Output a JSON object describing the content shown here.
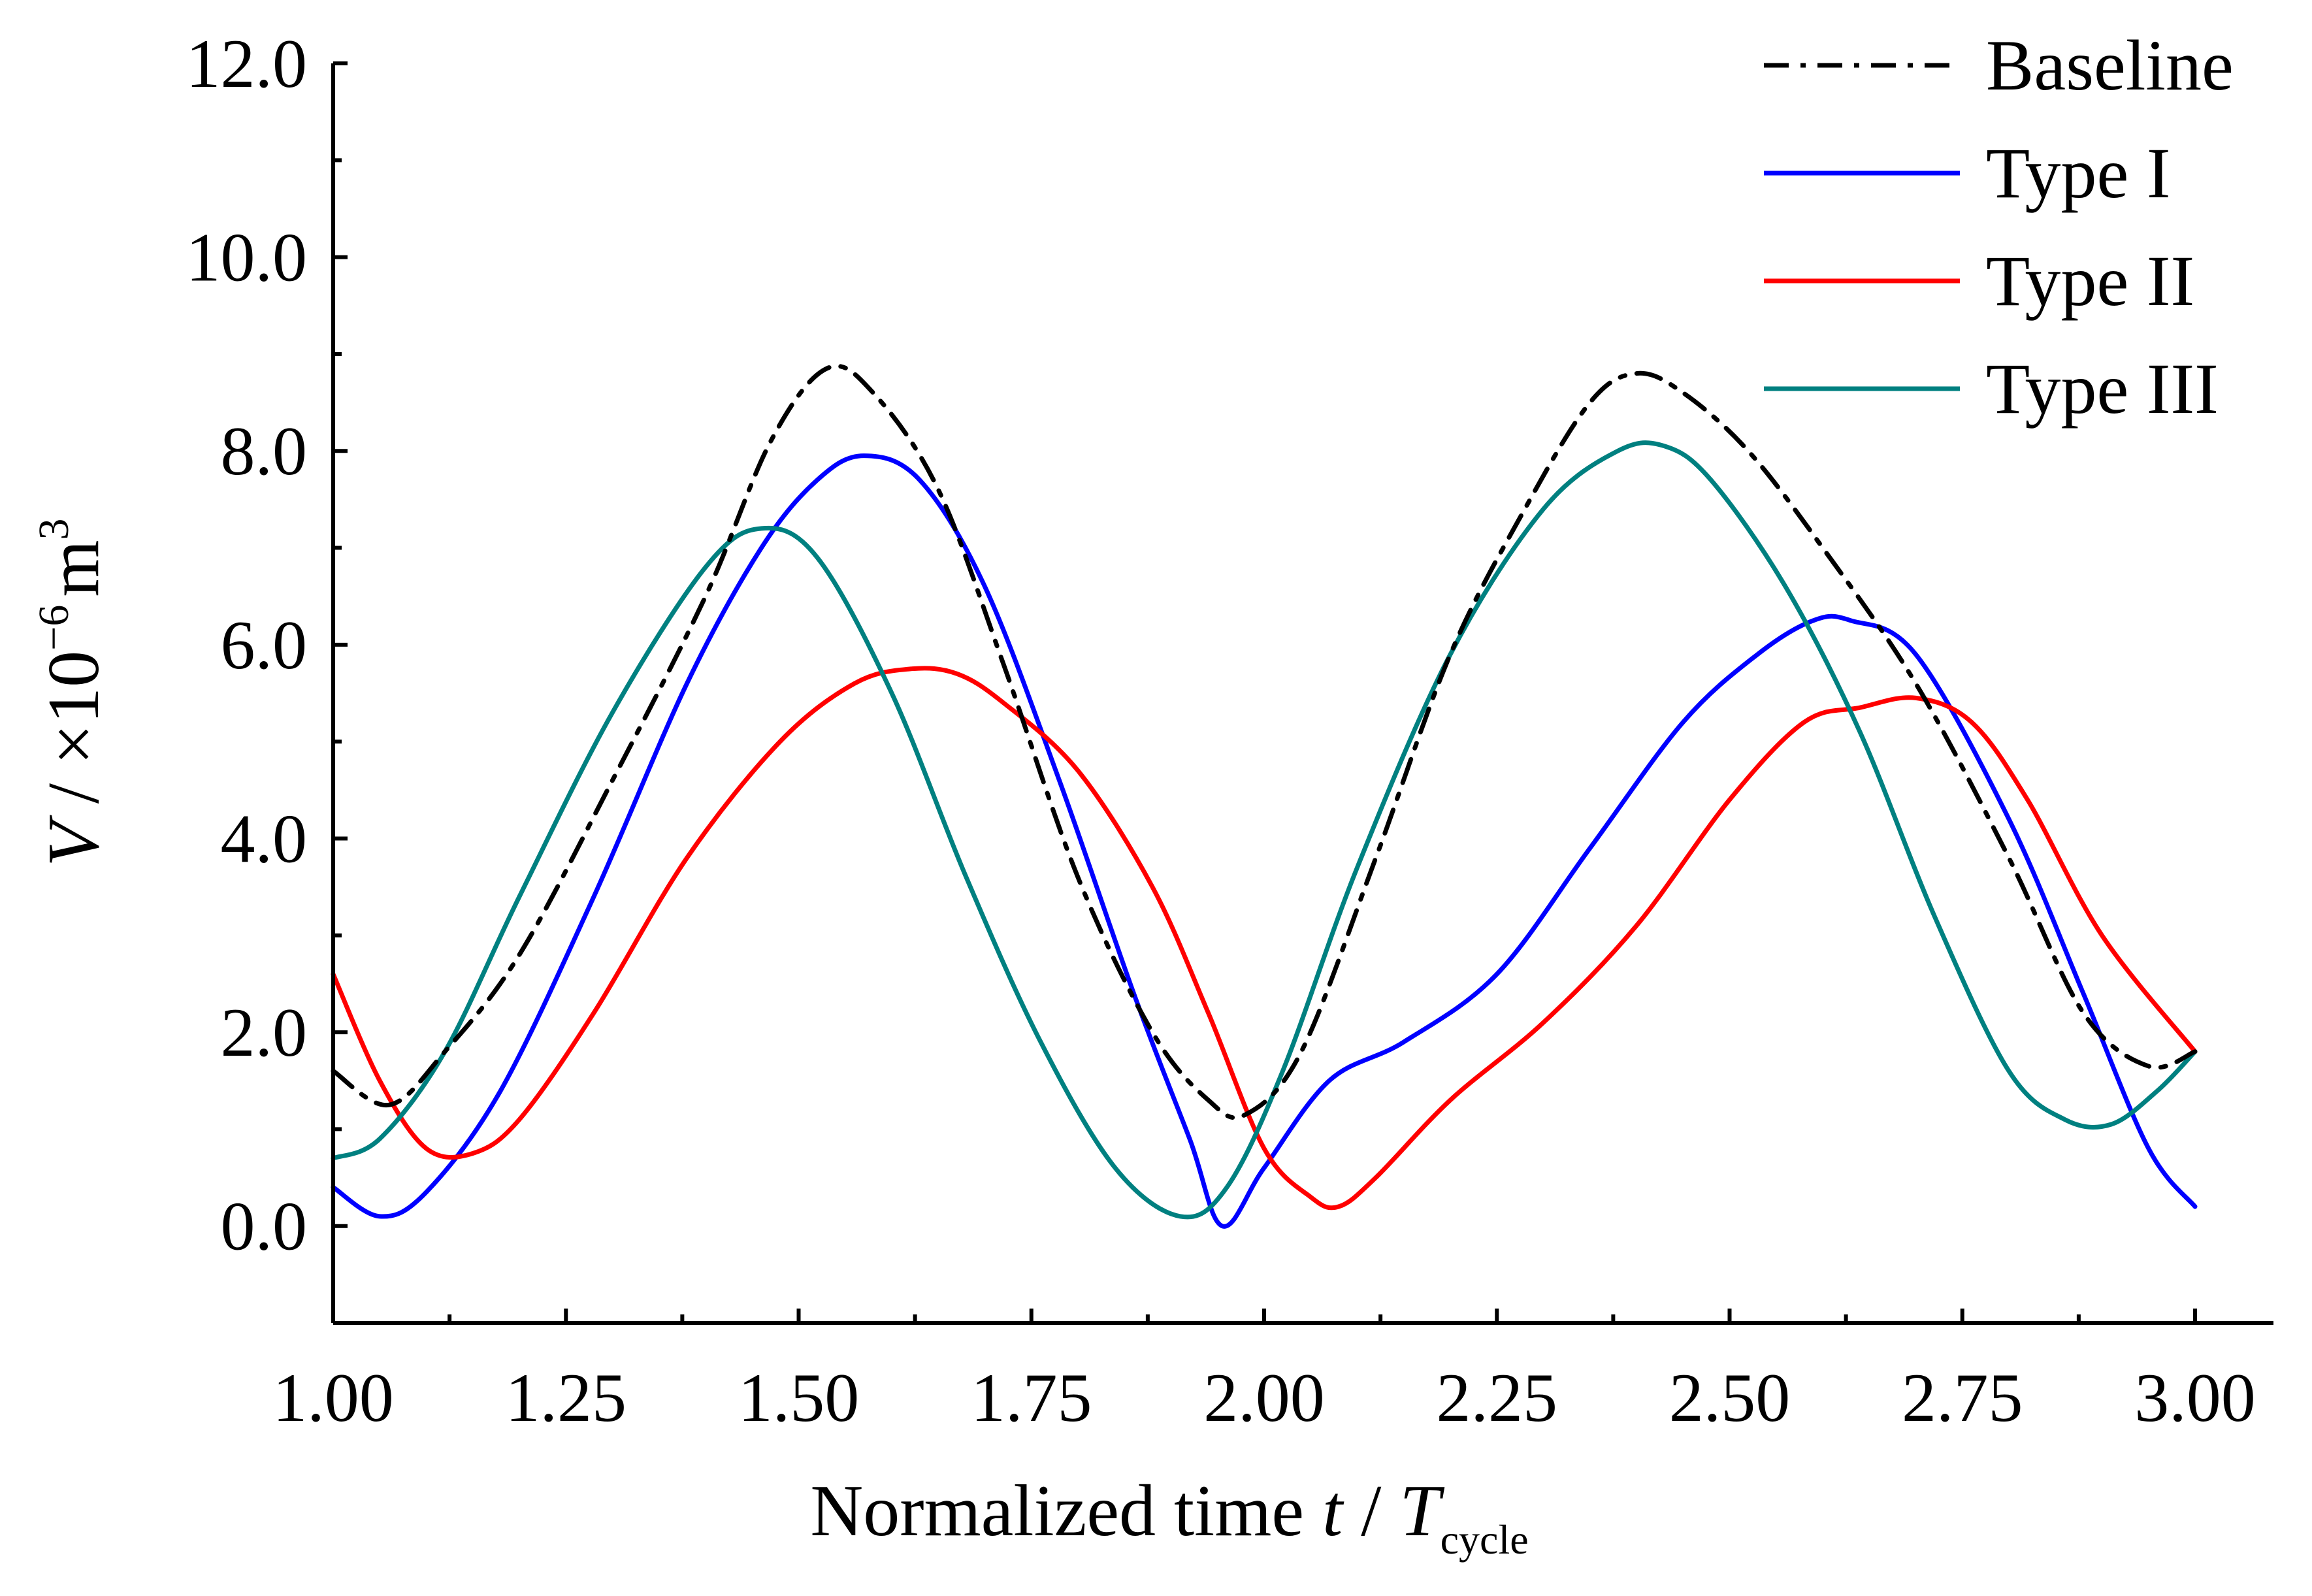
{
  "chart_data": {
    "type": "line",
    "title": "",
    "xlabel": {
      "main": "Normalized time",
      "var": "t",
      "sep": "/",
      "denom": "T",
      "denom_sub": "cycle"
    },
    "ylabel": {
      "var": "V",
      "sep": "/",
      "unit": "×10",
      "exp": "−6",
      "unit2": "m",
      "exp2": "3"
    },
    "xlim": [
      1.0,
      3.0
    ],
    "ylim": [
      -1.0,
      12.0
    ],
    "x_ticks": [
      1.0,
      1.25,
      1.5,
      1.75,
      2.0,
      2.25,
      2.5,
      2.75,
      3.0
    ],
    "x_tick_labels": [
      "1.00",
      "1.25",
      "1.50",
      "1.75",
      "2.00",
      "2.25",
      "2.50",
      "2.75",
      "3.00"
    ],
    "y_ticks": [
      0,
      2,
      4,
      6,
      8,
      10,
      12
    ],
    "y_tick_labels": [
      "0.0",
      "2.0",
      "4.0",
      "6.0",
      "8.0",
      "10.0",
      "12.0"
    ],
    "grid": false,
    "legend_position": "top-right",
    "series": [
      {
        "name": "Baseline",
        "color": "#000000",
        "dash": "dashdot",
        "x": [
          1.0,
          1.06,
          1.12,
          1.2,
          1.3,
          1.4,
          1.47,
          1.53,
          1.58,
          1.65,
          1.72,
          1.8,
          1.88,
          1.94,
          1.98,
          2.04,
          2.12,
          2.2,
          2.28,
          2.35,
          2.4,
          2.45,
          2.52,
          2.6,
          2.7,
          2.8,
          2.88,
          2.95,
          3.0
        ],
        "y": [
          1.6,
          1.25,
          1.8,
          2.8,
          4.6,
          6.5,
          8.1,
          8.85,
          8.6,
          7.6,
          5.8,
          3.6,
          2.0,
          1.3,
          1.15,
          1.8,
          3.8,
          5.9,
          7.4,
          8.5,
          8.8,
          8.6,
          8.0,
          7.0,
          5.6,
          3.8,
          2.2,
          1.65,
          1.8
        ]
      },
      {
        "name": "Type I",
        "color": "#0000ff",
        "dash": "solid",
        "x": [
          1.0,
          1.05,
          1.1,
          1.18,
          1.28,
          1.38,
          1.46,
          1.52,
          1.57,
          1.63,
          1.7,
          1.78,
          1.86,
          1.92,
          1.955,
          2.0,
          2.07,
          2.15,
          2.25,
          2.35,
          2.45,
          2.53,
          2.59,
          2.63,
          2.7,
          2.8,
          2.88,
          2.95,
          3.0
        ],
        "y": [
          0.4,
          0.1,
          0.35,
          1.4,
          3.4,
          5.6,
          7.0,
          7.7,
          7.95,
          7.7,
          6.6,
          4.6,
          2.4,
          0.9,
          0.0,
          0.6,
          1.5,
          1.9,
          2.6,
          3.9,
          5.2,
          5.9,
          6.25,
          6.25,
          5.9,
          4.2,
          2.4,
          0.8,
          0.2
        ]
      },
      {
        "name": "Type II",
        "color": "#ff0000",
        "dash": "solid",
        "x": [
          1.0,
          1.05,
          1.1,
          1.15,
          1.2,
          1.28,
          1.38,
          1.48,
          1.56,
          1.62,
          1.67,
          1.72,
          1.8,
          1.88,
          1.94,
          2.0,
          2.05,
          2.08,
          2.12,
          2.2,
          2.3,
          2.4,
          2.5,
          2.58,
          2.64,
          2.7,
          2.76,
          2.82,
          2.9,
          3.0
        ],
        "y": [
          2.6,
          1.5,
          0.8,
          0.75,
          1.1,
          2.2,
          3.8,
          5.0,
          5.6,
          5.75,
          5.7,
          5.4,
          4.7,
          3.5,
          2.2,
          0.8,
          0.3,
          0.2,
          0.5,
          1.3,
          2.1,
          3.1,
          4.4,
          5.2,
          5.35,
          5.45,
          5.2,
          4.4,
          3.0,
          1.8
        ]
      },
      {
        "name": "Type III",
        "color": "#008080",
        "dash": "solid",
        "x": [
          1.0,
          1.05,
          1.12,
          1.2,
          1.3,
          1.4,
          1.46,
          1.52,
          1.6,
          1.68,
          1.76,
          1.84,
          1.91,
          1.96,
          2.02,
          2.1,
          2.2,
          2.3,
          2.38,
          2.43,
          2.48,
          2.56,
          2.64,
          2.72,
          2.8,
          2.86,
          2.91,
          2.96,
          3.0
        ],
        "y": [
          0.7,
          0.9,
          1.8,
          3.4,
          5.3,
          6.8,
          7.2,
          6.9,
          5.5,
          3.6,
          1.9,
          0.6,
          0.1,
          0.4,
          1.6,
          3.7,
          5.9,
          7.4,
          8.0,
          8.05,
          7.7,
          6.6,
          5.1,
          3.2,
          1.6,
          1.1,
          1.05,
          1.4,
          1.8
        ]
      }
    ]
  }
}
